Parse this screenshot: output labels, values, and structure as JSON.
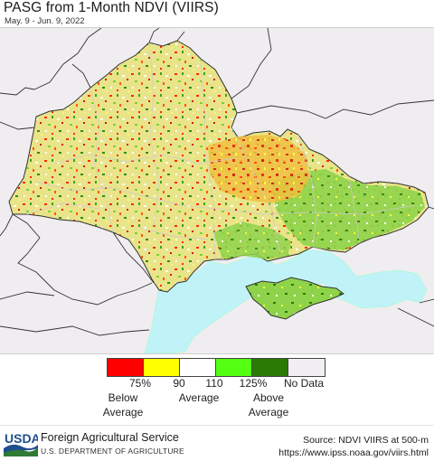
{
  "header": {
    "title": "PASG from 1-Month NDVI (VIIRS)",
    "date_range": "May. 9 - Jun. 9, 2022"
  },
  "map": {
    "region": "Ukraine",
    "colors": {
      "sea": "#bff3f7",
      "land_outside": "#efedf0",
      "border": "#333333"
    }
  },
  "legend": {
    "swatches": [
      {
        "color": "#ff0000"
      },
      {
        "color": "#ffff00"
      },
      {
        "color": "#ffffff"
      },
      {
        "color": "#55ff11"
      },
      {
        "color": "#2c7a06"
      },
      {
        "color": "#f2eff2"
      }
    ],
    "ticks": [
      "75%",
      "90",
      "110",
      "125%"
    ],
    "no_data_label": "No Data",
    "categories": {
      "below": [
        "Below",
        "Average"
      ],
      "average": "Average",
      "above": [
        "Above",
        "Average"
      ]
    }
  },
  "footer": {
    "logo_text": "USDA",
    "agency": "Foreign Agricultural Service",
    "department": "U.S. DEPARTMENT OF AGRICULTURE",
    "source": "Source: NDVI VIIRS at 500-m",
    "url": "https://www.ipss.noaa.gov/viirs.html"
  }
}
